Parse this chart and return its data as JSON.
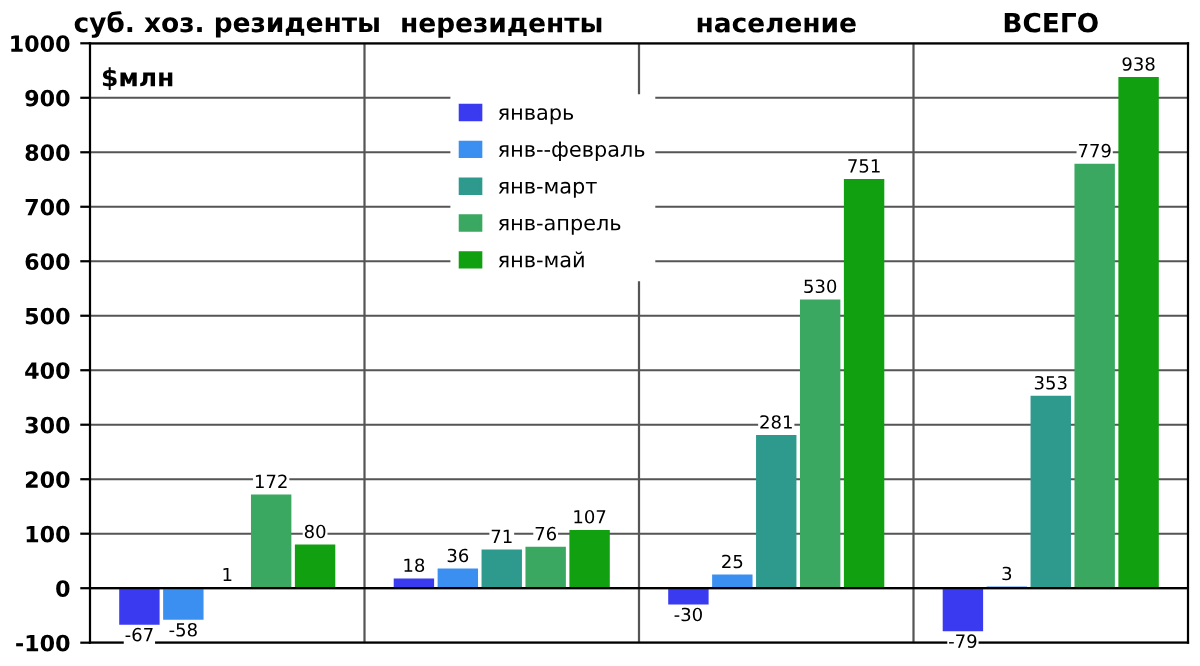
{
  "chart_data": {
    "type": "bar",
    "ylabel": "$млн",
    "categories": [
      "суб. хоз. резиденты",
      "нерезиденты",
      "население",
      "ВСЕГО"
    ],
    "series": [
      {
        "name": "январь",
        "color": "#3a3af0",
        "values": [
          -67,
          18,
          -30,
          -79
        ]
      },
      {
        "name": "янв--февраль",
        "color": "#3a8ff0",
        "values": [
          -58,
          36,
          25,
          3
        ]
      },
      {
        "name": "янв-март",
        "color": "#2e9a8e",
        "values": [
          1,
          71,
          281,
          353
        ]
      },
      {
        "name": "янв-апрель",
        "color": "#3aa860",
        "values": [
          172,
          76,
          530,
          779
        ]
      },
      {
        "name": "янв-май",
        "color": "#10a010",
        "values": [
          80,
          107,
          751,
          938
        ]
      }
    ],
    "ylim": [
      -100,
      1000
    ],
    "yticks": [
      -100,
      0,
      100,
      200,
      300,
      400,
      500,
      600,
      700,
      800,
      900,
      1000
    ],
    "grid": "y",
    "legend": "top left",
    "data_labels": true
  }
}
